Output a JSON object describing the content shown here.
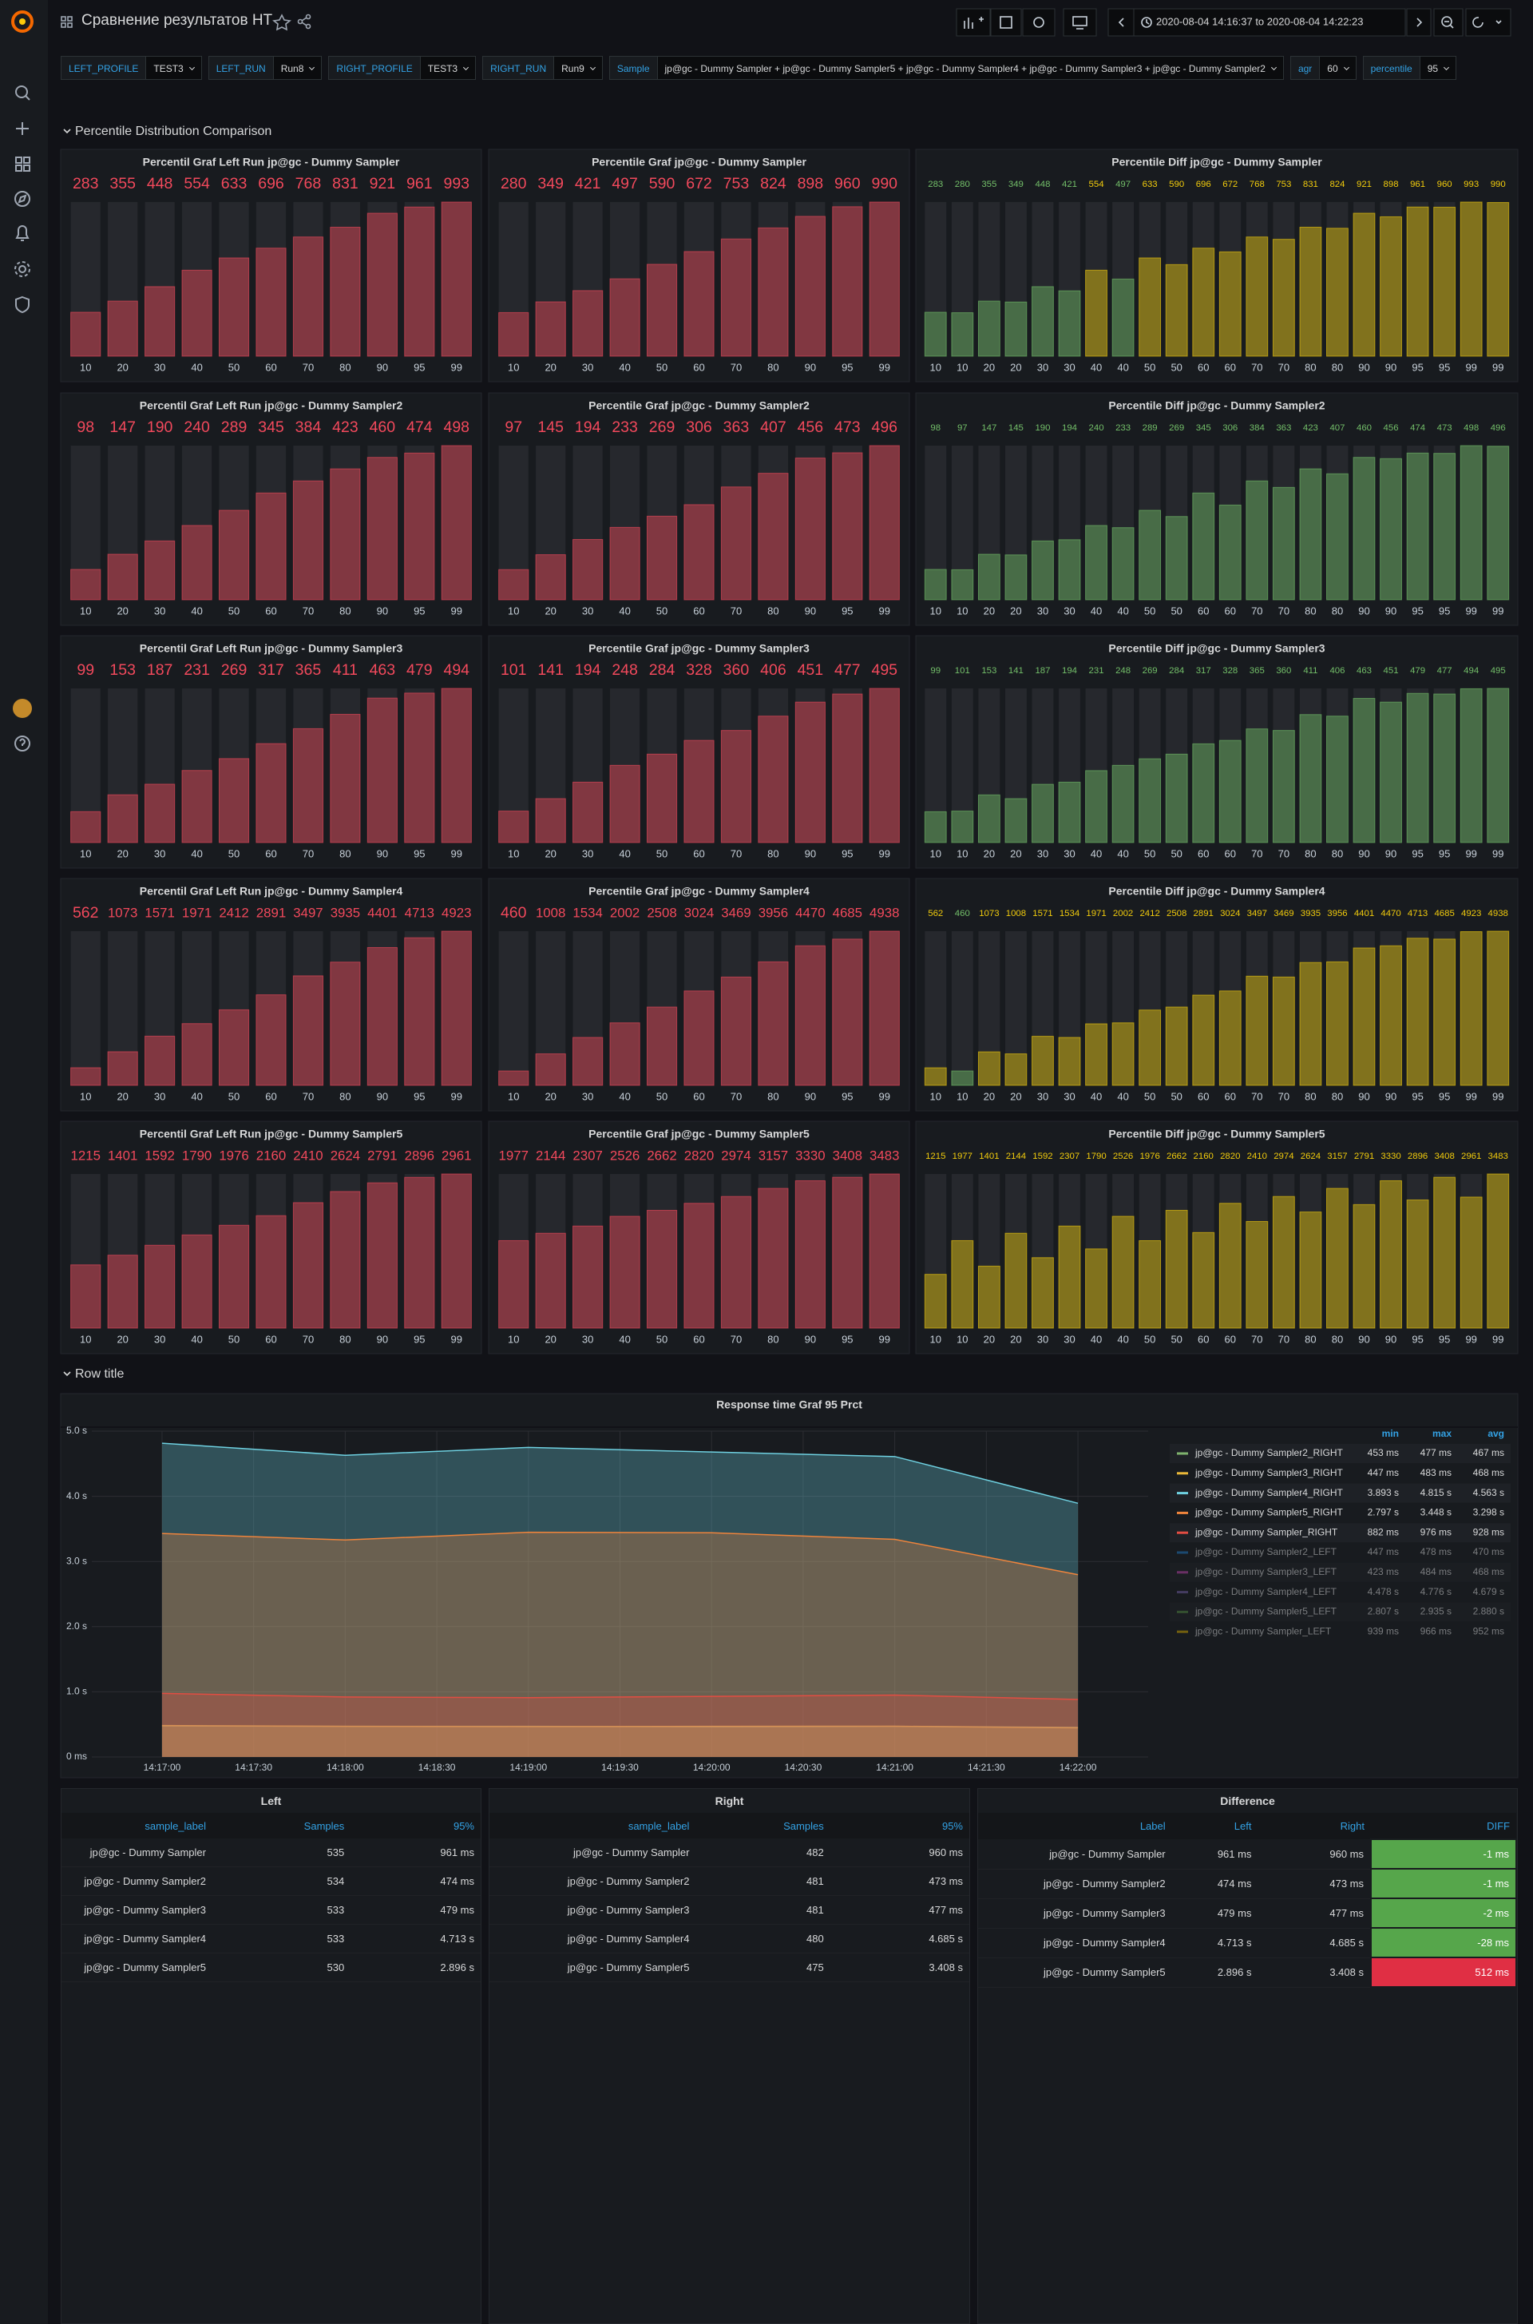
{
  "header": {
    "title": "Сравнение результатов НТ",
    "time_range": "2020-08-04 14:16:37 to 2020-08-04 14:22:23"
  },
  "variables": [
    {
      "label": "LEFT_PROFILE",
      "value": "TEST3"
    },
    {
      "label": "LEFT_RUN",
      "value": "Run8"
    },
    {
      "label": "RIGHT_PROFILE",
      "value": "TEST3"
    },
    {
      "label": "RIGHT_RUN",
      "value": "Run9"
    },
    {
      "label": "Sample",
      "value": "jp@gc - Dummy Sampler + jp@gc - Dummy Sampler5 + jp@gc - Dummy Sampler4 + jp@gc - Dummy Sampler3 + jp@gc - Dummy Sampler2"
    },
    {
      "label": "agr",
      "value": "60"
    },
    {
      "label": "percentile",
      "value": "95"
    }
  ],
  "rows": [
    "Percentile Distribution Comparison",
    "Row title"
  ],
  "chart_data": [
    {
      "type": "bar",
      "title": "Percentil Graf Left Run jp@gc - Dummy Sampler",
      "categories": [
        10,
        20,
        30,
        40,
        50,
        60,
        70,
        80,
        90,
        95,
        99
      ],
      "values": [
        283,
        355,
        448,
        554,
        633,
        696,
        768,
        831,
        921,
        961,
        993
      ],
      "color": "#f2495c"
    },
    {
      "type": "bar",
      "title": "Percentile Graf jp@gc - Dummy Sampler",
      "categories": [
        10,
        20,
        30,
        40,
        50,
        60,
        70,
        80,
        90,
        95,
        99
      ],
      "values": [
        280,
        349,
        421,
        497,
        590,
        672,
        753,
        824,
        898,
        960,
        990
      ],
      "color": "#f2495c"
    },
    {
      "type": "bar",
      "title": "Percentile Diff jp@gc - Dummy Sampler",
      "categories": [
        10,
        10,
        20,
        20,
        30,
        30,
        40,
        40,
        50,
        50,
        60,
        60,
        70,
        70,
        80,
        80,
        90,
        90,
        95,
        95,
        99,
        99
      ],
      "values": [
        283,
        280,
        355,
        349,
        448,
        421,
        554,
        497,
        633,
        590,
        696,
        672,
        768,
        753,
        831,
        824,
        921,
        898,
        961,
        960,
        993,
        990
      ],
      "threshold": 500,
      "colors": [
        "#73bf69",
        "#f2cc0c"
      ]
    },
    {
      "type": "bar",
      "title": "Percentil Graf Left Run jp@gc - Dummy Sampler2",
      "categories": [
        10,
        20,
        30,
        40,
        50,
        60,
        70,
        80,
        90,
        95,
        99
      ],
      "values": [
        98,
        147,
        190,
        240,
        289,
        345,
        384,
        423,
        460,
        474,
        498
      ],
      "color": "#f2495c"
    },
    {
      "type": "bar",
      "title": "Percentile Graf jp@gc - Dummy Sampler2",
      "categories": [
        10,
        20,
        30,
        40,
        50,
        60,
        70,
        80,
        90,
        95,
        99
      ],
      "values": [
        97,
        145,
        194,
        233,
        269,
        306,
        363,
        407,
        456,
        473,
        496
      ],
      "color": "#f2495c"
    },
    {
      "type": "bar",
      "title": "Percentile Diff jp@gc - Dummy Sampler2",
      "categories": [
        10,
        10,
        20,
        20,
        30,
        30,
        40,
        40,
        50,
        50,
        60,
        60,
        70,
        70,
        80,
        80,
        90,
        90,
        95,
        95,
        99,
        99
      ],
      "values": [
        98,
        97,
        147,
        145,
        190,
        194,
        240,
        233,
        289,
        269,
        345,
        306,
        384,
        363,
        423,
        407,
        460,
        456,
        474,
        473,
        498,
        496
      ],
      "threshold": 500,
      "colors": [
        "#73bf69",
        "#f2cc0c"
      ]
    },
    {
      "type": "bar",
      "title": "Percentil Graf Left Run jp@gc - Dummy Sampler3",
      "categories": [
        10,
        20,
        30,
        40,
        50,
        60,
        70,
        80,
        90,
        95,
        99
      ],
      "values": [
        99,
        153,
        187,
        231,
        269,
        317,
        365,
        411,
        463,
        479,
        494
      ],
      "color": "#f2495c"
    },
    {
      "type": "bar",
      "title": "Percentile Graf jp@gc - Dummy Sampler3",
      "categories": [
        10,
        20,
        30,
        40,
        50,
        60,
        70,
        80,
        90,
        95,
        99
      ],
      "values": [
        101,
        141,
        194,
        248,
        284,
        328,
        360,
        406,
        451,
        477,
        495
      ],
      "color": "#f2495c"
    },
    {
      "type": "bar",
      "title": "Percentile Diff jp@gc - Dummy Sampler3",
      "categories": [
        10,
        10,
        20,
        20,
        30,
        30,
        40,
        40,
        50,
        50,
        60,
        60,
        70,
        70,
        80,
        80,
        90,
        90,
        95,
        95,
        99,
        99
      ],
      "values": [
        99,
        101,
        153,
        141,
        187,
        194,
        231,
        248,
        269,
        284,
        317,
        328,
        365,
        360,
        411,
        406,
        463,
        451,
        479,
        477,
        494,
        495
      ],
      "threshold": 500,
      "colors": [
        "#73bf69",
        "#f2cc0c"
      ]
    },
    {
      "type": "bar",
      "title": "Percentil Graf Left Run jp@gc - Dummy Sampler4",
      "categories": [
        10,
        20,
        30,
        40,
        50,
        60,
        70,
        80,
        90,
        95,
        99
      ],
      "values": [
        562,
        1073,
        1571,
        1971,
        2412,
        2891,
        3497,
        3935,
        4401,
        4713,
        4923
      ],
      "color": "#f2495c"
    },
    {
      "type": "bar",
      "title": "Percentile Graf jp@gc - Dummy Sampler4",
      "categories": [
        10,
        20,
        30,
        40,
        50,
        60,
        70,
        80,
        90,
        95,
        99
      ],
      "values": [
        460,
        1008,
        1534,
        2002,
        2508,
        3024,
        3469,
        3956,
        4470,
        4685,
        4938
      ],
      "color": "#f2495c"
    },
    {
      "type": "bar",
      "title": "Percentile Diff jp@gc - Dummy Sampler4",
      "categories": [
        10,
        10,
        20,
        20,
        30,
        30,
        40,
        40,
        50,
        50,
        60,
        60,
        70,
        70,
        80,
        80,
        90,
        90,
        95,
        95,
        99,
        99
      ],
      "values": [
        562,
        460,
        1073,
        1008,
        1571,
        1534,
        1971,
        2002,
        2412,
        2508,
        2891,
        3024,
        3497,
        3469,
        3935,
        3956,
        4401,
        4470,
        4713,
        4685,
        4923,
        4938
      ],
      "threshold": 500,
      "colors": [
        "#73bf69",
        "#f2cc0c"
      ]
    },
    {
      "type": "bar",
      "title": "Percentil Graf Left Run jp@gc - Dummy Sampler5",
      "categories": [
        10,
        20,
        30,
        40,
        50,
        60,
        70,
        80,
        90,
        95,
        99
      ],
      "values": [
        1215,
        1401,
        1592,
        1790,
        1976,
        2160,
        2410,
        2624,
        2791,
        2896,
        2961
      ],
      "color": "#f2495c"
    },
    {
      "type": "bar",
      "title": "Percentile Graf jp@gc - Dummy Sampler5",
      "categories": [
        10,
        20,
        30,
        40,
        50,
        60,
        70,
        80,
        90,
        95,
        99
      ],
      "values": [
        1977,
        2144,
        2307,
        2526,
        2662,
        2820,
        2974,
        3157,
        3330,
        3408,
        3483
      ],
      "color": "#f2495c"
    },
    {
      "type": "bar",
      "title": "Percentile Diff jp@gc - Dummy Sampler5",
      "categories": [
        10,
        10,
        20,
        20,
        30,
        30,
        40,
        40,
        50,
        50,
        60,
        60,
        70,
        70,
        80,
        80,
        90,
        90,
        95,
        95,
        99,
        99
      ],
      "values": [
        1215,
        1977,
        1401,
        2144,
        1592,
        2307,
        1790,
        2526,
        1976,
        2662,
        2160,
        2820,
        2410,
        2974,
        2624,
        3157,
        2791,
        3330,
        2896,
        3408,
        2961,
        3483
      ],
      "threshold": 500,
      "colors": [
        "#73bf69",
        "#f2cc0c"
      ]
    },
    {
      "type": "line",
      "title": "Response time Graf 95 Prct",
      "x": [
        "14:17:00",
        "14:18:00",
        "14:19:00",
        "14:20:00",
        "14:21:00",
        "14:22:00"
      ],
      "xlim": [
        "14:16:37",
        "14:22:23"
      ],
      "xticks": [
        "14:17:00",
        "14:17:30",
        "14:18:00",
        "14:18:30",
        "14:19:00",
        "14:19:30",
        "14:20:00",
        "14:20:30",
        "14:21:00",
        "14:21:30",
        "14:22:00"
      ],
      "ylim": [
        0,
        5000
      ],
      "yticks": [
        {
          "value": 0,
          "label": "0 ms"
        },
        {
          "value": 1000,
          "label": "1.0 s"
        },
        {
          "value": 2000,
          "label": "2.0 s"
        },
        {
          "value": 3000,
          "label": "3.0 s"
        },
        {
          "value": 4000,
          "label": "4.0 s"
        },
        {
          "value": 5000,
          "label": "5.0 s"
        }
      ],
      "grid": true,
      "legend_columns": [
        "min",
        "max",
        "avg"
      ],
      "series": [
        {
          "name": "jp@gc - Dummy Sampler2_RIGHT",
          "color": "#7eb26d",
          "values": [
            477,
            470,
            470,
            462,
            470,
            453
          ],
          "min": "453 ms",
          "max": "477 ms",
          "avg": "467 ms"
        },
        {
          "name": "jp@gc - Dummy Sampler3_RIGHT",
          "color": "#eab839",
          "values": [
            483,
            470,
            466,
            470,
            472,
            447
          ],
          "min": "447 ms",
          "max": "483 ms",
          "avg": "468 ms"
        },
        {
          "name": "jp@gc - Dummy Sampler4_RIGHT",
          "color": "#6ed0e0",
          "values": [
            4815,
            4630,
            4750,
            4680,
            4610,
            3893
          ],
          "min": "3.893 s",
          "max": "4.815 s",
          "avg": "4.563 s"
        },
        {
          "name": "jp@gc - Dummy Sampler5_RIGHT",
          "color": "#ef843c",
          "values": [
            3430,
            3330,
            3448,
            3440,
            3340,
            2797
          ],
          "min": "2.797 s",
          "max": "3.448 s",
          "avg": "3.298 s"
        },
        {
          "name": "jp@gc - Dummy Sampler_RIGHT",
          "color": "#e24d42",
          "values": [
            976,
            920,
            910,
            930,
            950,
            882
          ],
          "min": "882 ms",
          "max": "976 ms",
          "avg": "928 ms"
        },
        {
          "name": "jp@gc - Dummy Sampler2_LEFT",
          "color": "#1f78c1",
          "hidden": true,
          "min": "447 ms",
          "max": "478 ms",
          "avg": "470 ms"
        },
        {
          "name": "jp@gc - Dummy Sampler3_LEFT",
          "color": "#ba43a9",
          "hidden": true,
          "min": "423 ms",
          "max": "484 ms",
          "avg": "468 ms"
        },
        {
          "name": "jp@gc - Dummy Sampler4_LEFT",
          "color": "#705da0",
          "hidden": true,
          "min": "4.478 s",
          "max": "4.776 s",
          "avg": "4.679 s"
        },
        {
          "name": "jp@gc - Dummy Sampler5_LEFT",
          "color": "#508642",
          "hidden": true,
          "min": "2.807 s",
          "max": "2.935 s",
          "avg": "2.880 s"
        },
        {
          "name": "jp@gc - Dummy Sampler_LEFT",
          "color": "#cca300",
          "hidden": true,
          "min": "939 ms",
          "max": "966 ms",
          "avg": "952 ms"
        }
      ]
    }
  ],
  "tables": [
    {
      "title": "Left",
      "columns": [
        "sample_label",
        "Samples",
        "95%"
      ],
      "rows": [
        [
          "jp@gc - Dummy Sampler",
          535,
          "961 ms"
        ],
        [
          "jp@gc - Dummy Sampler2",
          534,
          "474 ms"
        ],
        [
          "jp@gc - Dummy Sampler3",
          533,
          "479 ms"
        ],
        [
          "jp@gc - Dummy Sampler4",
          533,
          "4.713 s"
        ],
        [
          "jp@gc - Dummy Sampler5",
          530,
          "2.896 s"
        ]
      ]
    },
    {
      "title": "Right",
      "columns": [
        "sample_label",
        "Samples",
        "95%"
      ],
      "rows": [
        [
          "jp@gc - Dummy Sampler",
          482,
          "960 ms"
        ],
        [
          "jp@gc - Dummy Sampler2",
          481,
          "473 ms"
        ],
        [
          "jp@gc - Dummy Sampler3",
          481,
          "477 ms"
        ],
        [
          "jp@gc - Dummy Sampler4",
          480,
          "4.685 s"
        ],
        [
          "jp@gc - Dummy Sampler5",
          475,
          "3.408 s"
        ]
      ]
    },
    {
      "title": "Difference",
      "columns": [
        "Label",
        "Left",
        "Right",
        "DIFF"
      ],
      "rows": [
        [
          "jp@gc - Dummy Sampler",
          "961 ms",
          "960 ms",
          "-1 ms"
        ],
        [
          "jp@gc - Dummy Sampler2",
          "474 ms",
          "473 ms",
          "-1 ms"
        ],
        [
          "jp@gc - Dummy Sampler3",
          "479 ms",
          "477 ms",
          "-2 ms"
        ],
        [
          "jp@gc - Dummy Sampler4",
          "4.713 s",
          "4.685 s",
          "-28 ms"
        ],
        [
          "jp@gc - Dummy Sampler5",
          "2.896 s",
          "3.408 s",
          "512 ms"
        ]
      ],
      "cell_colors": [
        "#56a64b",
        "#56a64b",
        "#56a64b",
        "#56a64b",
        "#e02f44"
      ]
    }
  ]
}
